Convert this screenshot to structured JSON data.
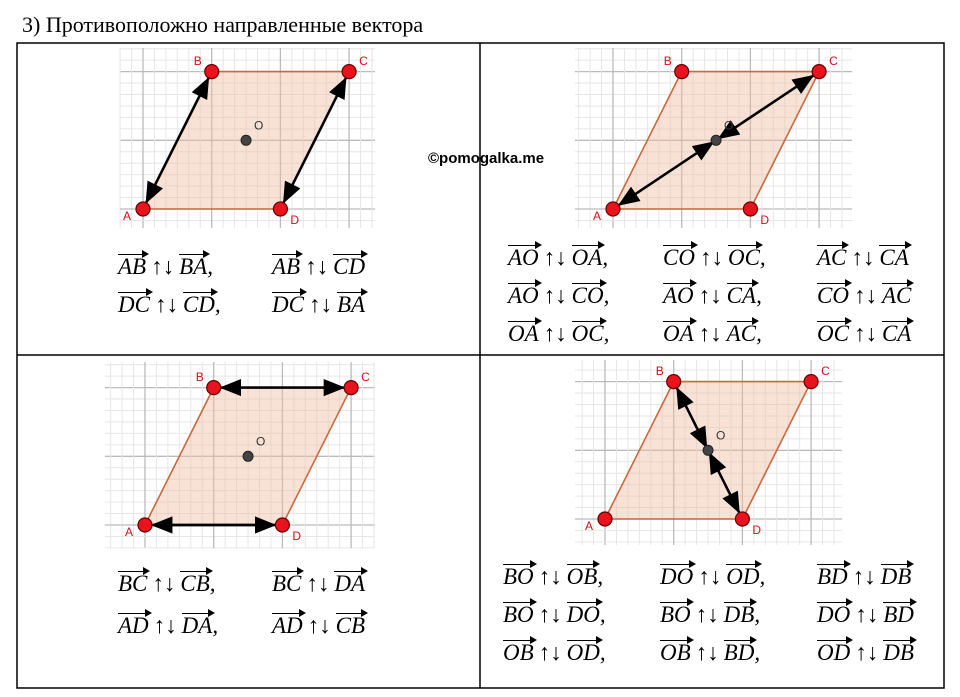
{
  "header": {
    "title": "3) Противоположно направленные вектора"
  },
  "watermark": "©pomogalka.me",
  "relation": "↑↓",
  "panels": [
    {
      "points": [
        "A",
        "B",
        "C",
        "D",
        "O"
      ],
      "rows": [
        [
          {
            "a": "AB",
            "b": "BA",
            "punct": ","
          },
          {
            "a": "AB",
            "b": "CD"
          }
        ],
        [
          {
            "a": "DC",
            "b": "CD",
            "punct": ","
          },
          {
            "a": "DC",
            "b": "BA"
          }
        ]
      ]
    },
    {
      "points": [
        "A",
        "B",
        "C",
        "D",
        "O"
      ],
      "rows": [
        [
          {
            "a": "AO",
            "b": "OA",
            "punct": ","
          },
          {
            "a": "CO",
            "b": "OC",
            "punct": ","
          },
          {
            "a": "AC",
            "b": "CA"
          }
        ],
        [
          {
            "a": "AO",
            "b": "CO",
            "punct": ","
          },
          {
            "a": "AO",
            "b": "CA",
            "punct": ","
          },
          {
            "a": "CO",
            "b": "AC"
          }
        ],
        [
          {
            "a": "OA",
            "b": "OC",
            "punct": ","
          },
          {
            "a": "OA",
            "b": "AC",
            "punct": ","
          },
          {
            "a": "OC",
            "b": "CA"
          }
        ]
      ]
    },
    {
      "points": [
        "A",
        "B",
        "C",
        "D",
        "O"
      ],
      "rows": [
        [
          {
            "a": "BC",
            "b": "CB",
            "punct": ","
          },
          {
            "a": "BC",
            "b": "DA"
          }
        ],
        [
          {
            "a": "AD",
            "b": "DA",
            "punct": ","
          },
          {
            "a": "AD",
            "b": "CB"
          }
        ]
      ]
    },
    {
      "points": [
        "A",
        "B",
        "C",
        "D",
        "O"
      ],
      "rows": [
        [
          {
            "a": "BO",
            "b": "OB",
            "punct": ","
          },
          {
            "a": "DO",
            "b": "OD",
            "punct": ","
          },
          {
            "a": "BD",
            "b": "DB"
          }
        ],
        [
          {
            "a": "BO",
            "b": "DO",
            "punct": ","
          },
          {
            "a": "BO",
            "b": "DB",
            "punct": ","
          },
          {
            "a": "DO",
            "b": "BD"
          }
        ],
        [
          {
            "a": "OB",
            "b": "OD",
            "punct": ","
          },
          {
            "a": "OB",
            "b": "BD",
            "punct": ","
          },
          {
            "a": "OD",
            "b": "DB"
          }
        ]
      ]
    }
  ]
}
